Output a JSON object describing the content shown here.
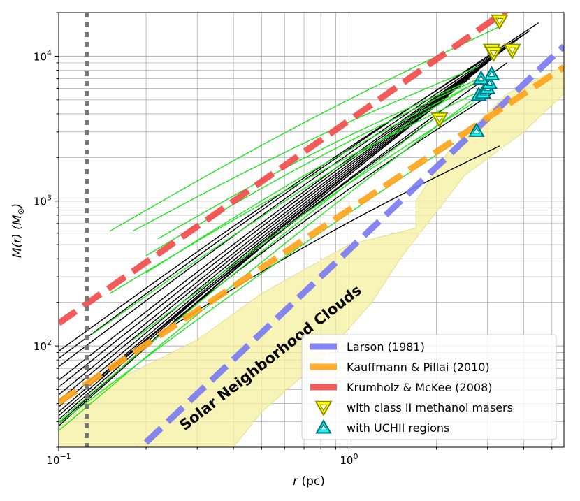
{
  "chart_data": {
    "type": "line",
    "scale": "log-log",
    "xlabel_var": "r",
    "xlabel_unit": "(pc)",
    "ylabel_main": "M(r) (M",
    "ylabel_sub": "⊙",
    "ylabel_close": ")",
    "xlim": [
      0.1,
      5.5
    ],
    "ylim": [
      20,
      20000
    ],
    "x_ticks": [
      {
        "value": 0.1,
        "base": "10",
        "exp": "−1"
      },
      {
        "value": 1,
        "base": "10",
        "exp": "0"
      }
    ],
    "y_ticks": [
      {
        "value": 100,
        "base": "10",
        "exp": "2"
      },
      {
        "value": 1000,
        "base": "10",
        "exp": "3"
      },
      {
        "value": 10000,
        "base": "10",
        "exp": "4"
      }
    ],
    "grid": true,
    "resolution_limit_r": 0.125,
    "annotation": "Solar Neighborhood Clouds",
    "shaded_region": {
      "upper": [
        [
          0.1,
          27
        ],
        [
          0.15,
          55
        ],
        [
          0.3,
          110
        ],
        [
          0.5,
          230
        ],
        [
          1.0,
          500
        ],
        [
          1.7,
          650
        ],
        [
          1.7,
          1000
        ],
        [
          2.2,
          2200
        ],
        [
          3.5,
          5500
        ],
        [
          5.5,
          8500
        ]
      ],
      "lower": [
        [
          5.5,
          5500
        ],
        [
          4.0,
          3000
        ],
        [
          2.5,
          1500
        ],
        [
          1.5,
          400
        ],
        [
          1.2,
          200
        ],
        [
          0.8,
          80
        ],
        [
          0.5,
          35
        ],
        [
          0.4,
          20
        ],
        [
          0.2,
          20
        ],
        [
          0.1,
          20
        ]
      ]
    },
    "reference_lines": [
      {
        "name": "Larson (1981)",
        "color": "#7b7bf2",
        "coef": 460,
        "exp": 1.9
      },
      {
        "name": "Kauffmann & Pillai (2010)",
        "color": "#ffa41c",
        "coef": 870,
        "exp": 1.33
      },
      {
        "name": "Krumholz & McKee (2008)",
        "color": "#f24c4c",
        "coef": 3600,
        "exp": 1.4
      }
    ],
    "black_profiles": [
      {
        "r0": 0.1,
        "m0": 82,
        "r1": 4.5,
        "m1": 17000
      },
      {
        "r0": 0.1,
        "m0": 92,
        "r1": 4.2,
        "m1": 15000
      },
      {
        "r0": 0.1,
        "m0": 72,
        "r1": 4.0,
        "m1": 14000
      },
      {
        "r0": 0.1,
        "m0": 58,
        "r1": 3.8,
        "m1": 13000
      },
      {
        "r0": 0.1,
        "m0": 52,
        "r1": 3.6,
        "m1": 12000
      },
      {
        "r0": 0.1,
        "m0": 46,
        "r1": 3.4,
        "m1": 11000
      },
      {
        "r0": 0.1,
        "m0": 42,
        "r1": 3.2,
        "m1": 10000
      },
      {
        "r0": 0.1,
        "m0": 38,
        "r1": 3.0,
        "m1": 9000
      },
      {
        "r0": 0.1,
        "m0": 35,
        "r1": 2.8,
        "m1": 8000
      },
      {
        "r0": 0.1,
        "m0": 33,
        "r1": 2.6,
        "m1": 7000
      },
      {
        "r0": 0.1,
        "m0": 31,
        "r1": 2.4,
        "m1": 6200
      },
      {
        "r0": 0.1,
        "m0": 29,
        "r1": 2.2,
        "m1": 5300
      },
      {
        "r0": 0.1,
        "m0": 28,
        "r1": 2.0,
        "m1": 4600
      },
      {
        "r0": 0.14,
        "m0": 60,
        "r1": 2.0,
        "m1": 3800
      },
      {
        "r0": 0.12,
        "m0": 48,
        "r1": 3.5,
        "m1": 9000
      },
      {
        "r0": 0.25,
        "m0": 150,
        "r1": 3.1,
        "m1": 5500
      },
      {
        "r0": 0.25,
        "m0": 140,
        "r1": 3.3,
        "m1": 2400
      }
    ],
    "green_profiles": [
      {
        "r0": 0.15,
        "m0": 620,
        "r1": 3.3,
        "m1": 16000
      },
      {
        "r0": 0.18,
        "m0": 620,
        "r1": 2.8,
        "m1": 8500
      },
      {
        "r0": 0.22,
        "m0": 550,
        "r1": 2.5,
        "m1": 6500
      },
      {
        "r0": 0.2,
        "m0": 420,
        "r1": 2.8,
        "m1": 7000
      },
      {
        "r0": 0.2,
        "m0": 320,
        "r1": 3.0,
        "m1": 7200
      },
      {
        "r0": 0.15,
        "m0": 230,
        "r1": 2.7,
        "m1": 5500
      },
      {
        "r0": 0.13,
        "m0": 120,
        "r1": 2.8,
        "m1": 6800
      },
      {
        "r0": 0.18,
        "m0": 110,
        "r1": 2.7,
        "m1": 4800
      },
      {
        "r0": 0.1,
        "m0": 30,
        "r1": 2.0,
        "m1": 3800
      },
      {
        "r0": 0.1,
        "m0": 26,
        "r1": 3.0,
        "m1": 6000
      },
      {
        "r0": 0.1,
        "m0": 29,
        "r1": 2.3,
        "m1": 2500
      }
    ],
    "maser_points": [
      [
        2.05,
        3700
      ],
      [
        3.3,
        17500
      ],
      [
        3.1,
        11000
      ],
      [
        3.65,
        11000
      ],
      [
        3.15,
        10500
      ]
    ],
    "uchii_points": [
      [
        2.75,
        3050
      ],
      [
        2.8,
        5400
      ],
      [
        2.9,
        5600
      ],
      [
        3.0,
        6000
      ],
      [
        3.05,
        6500
      ],
      [
        3.1,
        7500
      ],
      [
        2.85,
        7000
      ]
    ],
    "legend": {
      "position": "lower-right",
      "entries": [
        {
          "label": "Larson (1981)",
          "kind": "dash",
          "color": "#7b7bf2"
        },
        {
          "label": "Kauffmann & Pillai (2010)",
          "kind": "dash",
          "color": "#ffa41c"
        },
        {
          "label": "Krumholz & McKee (2008)",
          "kind": "dash",
          "color": "#f24c4c"
        },
        {
          "label": "with class II methanol masers",
          "kind": "tri-down",
          "color": "#ffff00"
        },
        {
          "label": "with UCHII regions",
          "kind": "tri-up",
          "color": "#00ffff"
        }
      ]
    },
    "colors": {
      "profile_black": "#000000",
      "profile_green": "#1ee61e",
      "shade": "#f5f0a0",
      "grid": "#b0b0b0",
      "resolution": "#777777",
      "maser_fill": "#ffff00",
      "maser_edge": "#8f8f00",
      "uchii_fill": "#00ffff",
      "uchii_edge": "#006f7a"
    }
  }
}
